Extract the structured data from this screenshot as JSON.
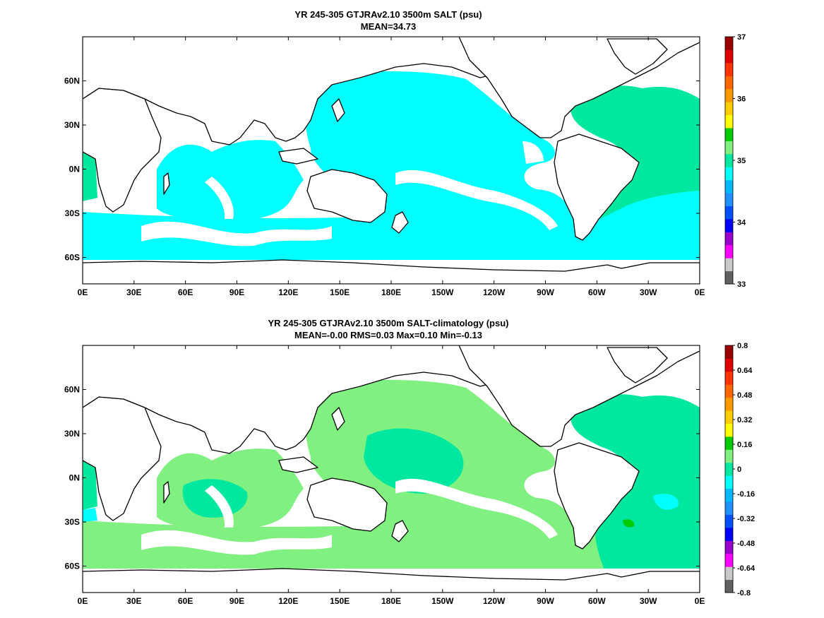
{
  "colors": {
    "cyan": "#00ffff",
    "green": "#80f080",
    "aqua_green": "#00e8a0",
    "land": "#ffffff",
    "coast": "#000000"
  },
  "cmap": [
    "#606060",
    "#c8c8c8",
    "#ff00ff",
    "#9900cc",
    "#0000ff",
    "#0050ff",
    "#2090ff",
    "#00b8ff",
    "#00ffff",
    "#00e8a0",
    "#80f080",
    "#00cc00",
    "#ffff00",
    "#ffcc00",
    "#ff9900",
    "#ff6600",
    "#ff3300",
    "#e00000",
    "#990000"
  ],
  "top": {
    "title": "YR 245-305 GTJRAv2.10 3500m SALT (psu)",
    "subtitle": "MEAN=34.73",
    "colorbar_ticks": [
      "37",
      "36",
      "35",
      "34",
      "33"
    ]
  },
  "bottom": {
    "title": "YR 245-305 GTJRAv2.10 3500m SALT-climatology (psu)",
    "subtitle": "MEAN=-0.00   RMS=0.03   Max=0.10   Min=-0.13",
    "colorbar_ticks": [
      "0.8",
      "0.64",
      "0.48",
      "0.32",
      "0.16",
      "0",
      "-0.16",
      "-0.32",
      "-0.48",
      "-0.64",
      "-0.8"
    ]
  },
  "chart_data": [
    {
      "type": "heatmap",
      "title": "YR 245-305 GTJRAv2.10 3500m SALT (psu)",
      "subtitle": "MEAN=34.73",
      "x_ticks": [
        "0E",
        "30E",
        "60E",
        "90E",
        "120E",
        "150E",
        "180E",
        "150W",
        "120W",
        "90W",
        "60W",
        "30W",
        "0E"
      ],
      "y_ticks": [
        "60N",
        "30N",
        "0N",
        "30S",
        "60S"
      ],
      "xlim": [
        0,
        360
      ],
      "ylim": [
        -78,
        90
      ],
      "colorbar": {
        "range": [
          33,
          37
        ],
        "ticks": [
          33,
          34,
          35,
          36,
          37
        ]
      },
      "regions": [
        {
          "name": "pacific",
          "value": 34.7,
          "color": "#00ffff"
        },
        {
          "name": "indian",
          "value": 34.7,
          "color": "#00ffff"
        },
        {
          "name": "southern",
          "value": 34.7,
          "color": "#00ffff"
        },
        {
          "name": "south-atlantic",
          "value": 34.7,
          "color": "#00ffff"
        },
        {
          "name": "north-atlantic",
          "value": 34.9,
          "color": "#00e8a0"
        }
      ]
    },
    {
      "type": "heatmap",
      "title": "YR 245-305 GTJRAv2.10 3500m SALT-climatology (psu)",
      "subtitle": "MEAN=-0.00   RMS=0.03   Max=0.10   Min=-0.13",
      "x_ticks": [
        "0E",
        "30E",
        "60E",
        "90E",
        "120E",
        "150E",
        "180E",
        "150W",
        "120W",
        "90W",
        "60W",
        "30W",
        "0E"
      ],
      "y_ticks": [
        "60N",
        "30N",
        "0N",
        "30S",
        "60S"
      ],
      "xlim": [
        0,
        360
      ],
      "ylim": [
        -78,
        90
      ],
      "colorbar": {
        "range": [
          -0.8,
          0.8
        ],
        "ticks": [
          -0.8,
          -0.64,
          -0.48,
          -0.32,
          -0.16,
          0,
          0.16,
          0.32,
          0.48,
          0.64,
          0.8
        ]
      },
      "regions": [
        {
          "name": "pacific",
          "value": 0.02,
          "color": "#80f080"
        },
        {
          "name": "indian",
          "value": 0.02,
          "color": "#80f080"
        },
        {
          "name": "southern",
          "value": 0.02,
          "color": "#80f080"
        },
        {
          "name": "north-atlantic",
          "value": -0.02,
          "color": "#00e8a0"
        },
        {
          "name": "south-atlantic",
          "value": -0.02,
          "color": "#00e8a0"
        }
      ]
    }
  ]
}
